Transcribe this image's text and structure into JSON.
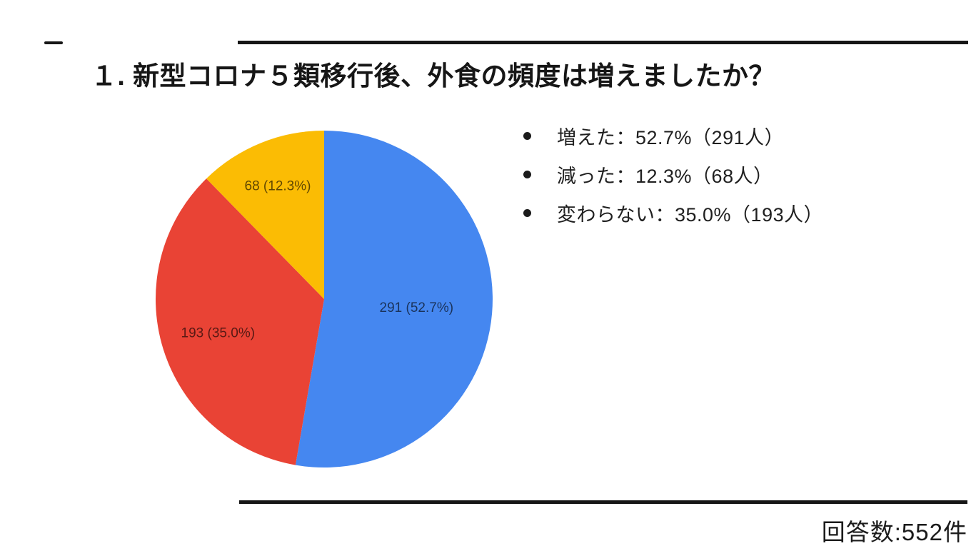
{
  "colors": {
    "ink": "#161616",
    "slice_blue": "#4587f0",
    "slice_red": "#e94335",
    "slice_yellow": "#fbbc04"
  },
  "title": {
    "text": "１. 新型コロナ５類移行後、外食の頻度は増えましたか？"
  },
  "legend": {
    "items": [
      {
        "text": "増えた：52.7%（291人）"
      },
      {
        "text": "減った：12.3%（68人）"
      },
      {
        "text": "変わらない：35.0%（193人）"
      }
    ]
  },
  "footer": {
    "respondents": "回答数:552件"
  },
  "chart_data": {
    "type": "pie",
    "title": "１. 新型コロナ５類移行後、外食の頻度は増えましたか？",
    "total_responses": 552,
    "legend_position": "right",
    "start_angle_deg": 0,
    "direction": "clockwise",
    "categories": [
      "増えた",
      "減った",
      "変わらない"
    ],
    "values": [
      291,
      68,
      193
    ],
    "percentages": [
      52.7,
      12.3,
      35.0
    ],
    "slices": [
      {
        "category": "増えた",
        "value": 291,
        "pct": 52.7,
        "color": "#4587f0",
        "label": "291 (52.7%)",
        "label_r": 0.55
      },
      {
        "category": "変わらない",
        "value": 193,
        "pct": 35.0,
        "color": "#e94335",
        "label": "193 (35.0%)",
        "label_r": 0.66
      },
      {
        "category": "減った",
        "value": 68,
        "pct": 12.3,
        "color": "#fbbc04",
        "label": "68 (12.3%)",
        "label_r": 0.73
      }
    ]
  }
}
